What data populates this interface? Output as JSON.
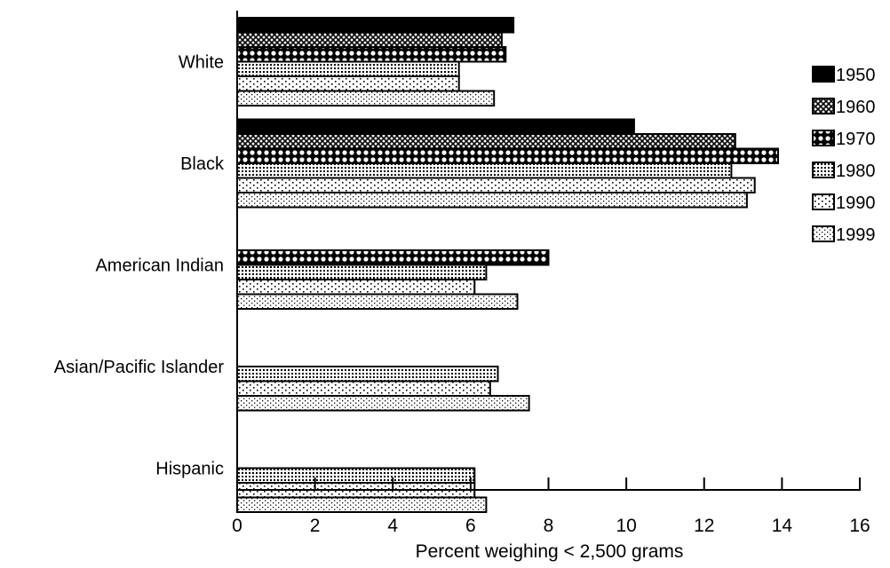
{
  "chart_data": {
    "type": "bar",
    "orientation": "horizontal",
    "categories": [
      "White",
      "Black",
      "American Indian",
      "Asian/Pacific Islander",
      "Hispanic"
    ],
    "series": [
      {
        "name": "1950",
        "pattern": "solid",
        "values": [
          7.1,
          10.2,
          null,
          null,
          null
        ]
      },
      {
        "name": "1960",
        "pattern": "crosshatch",
        "values": [
          6.8,
          12.8,
          null,
          null,
          null
        ]
      },
      {
        "name": "1970",
        "pattern": "circles",
        "values": [
          6.9,
          13.9,
          8.0,
          null,
          null
        ]
      },
      {
        "name": "1980",
        "pattern": "grid",
        "values": [
          5.7,
          12.7,
          6.4,
          6.7,
          6.1
        ]
      },
      {
        "name": "1990",
        "pattern": "dots",
        "values": [
          5.7,
          13.3,
          6.1,
          6.5,
          6.1
        ]
      },
      {
        "name": "1999",
        "pattern": "fine-dots",
        "values": [
          6.6,
          13.1,
          7.2,
          7.5,
          6.4
        ]
      }
    ],
    "xlabel": "Percent weighing < 2,500 grams",
    "ylabel": "",
    "xlim": [
      0,
      16
    ],
    "xticks": [
      0,
      2,
      4,
      6,
      8,
      10,
      12,
      14,
      16
    ],
    "grid": false,
    "legend": "right",
    "colors": {
      "ink": "#000000",
      "background": "#ffffff"
    }
  }
}
